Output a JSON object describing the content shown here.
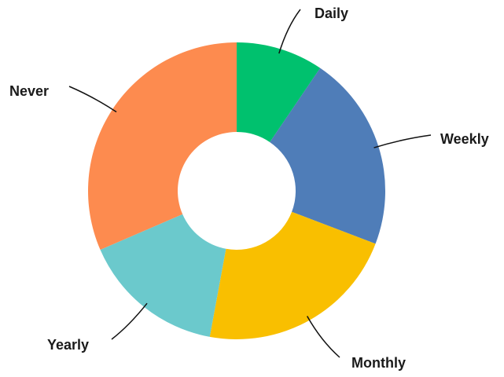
{
  "chart_data": {
    "type": "donut",
    "categories": [
      "Daily",
      "Weekly",
      "Monthly",
      "Yearly",
      "Never"
    ],
    "values": [
      9.5,
      21.3,
      22.1,
      15.6,
      31.5
    ],
    "colors": [
      "#00c16e",
      "#4f7db8",
      "#f9bf00",
      "#6bc9cc",
      "#fd8b4f"
    ]
  }
}
